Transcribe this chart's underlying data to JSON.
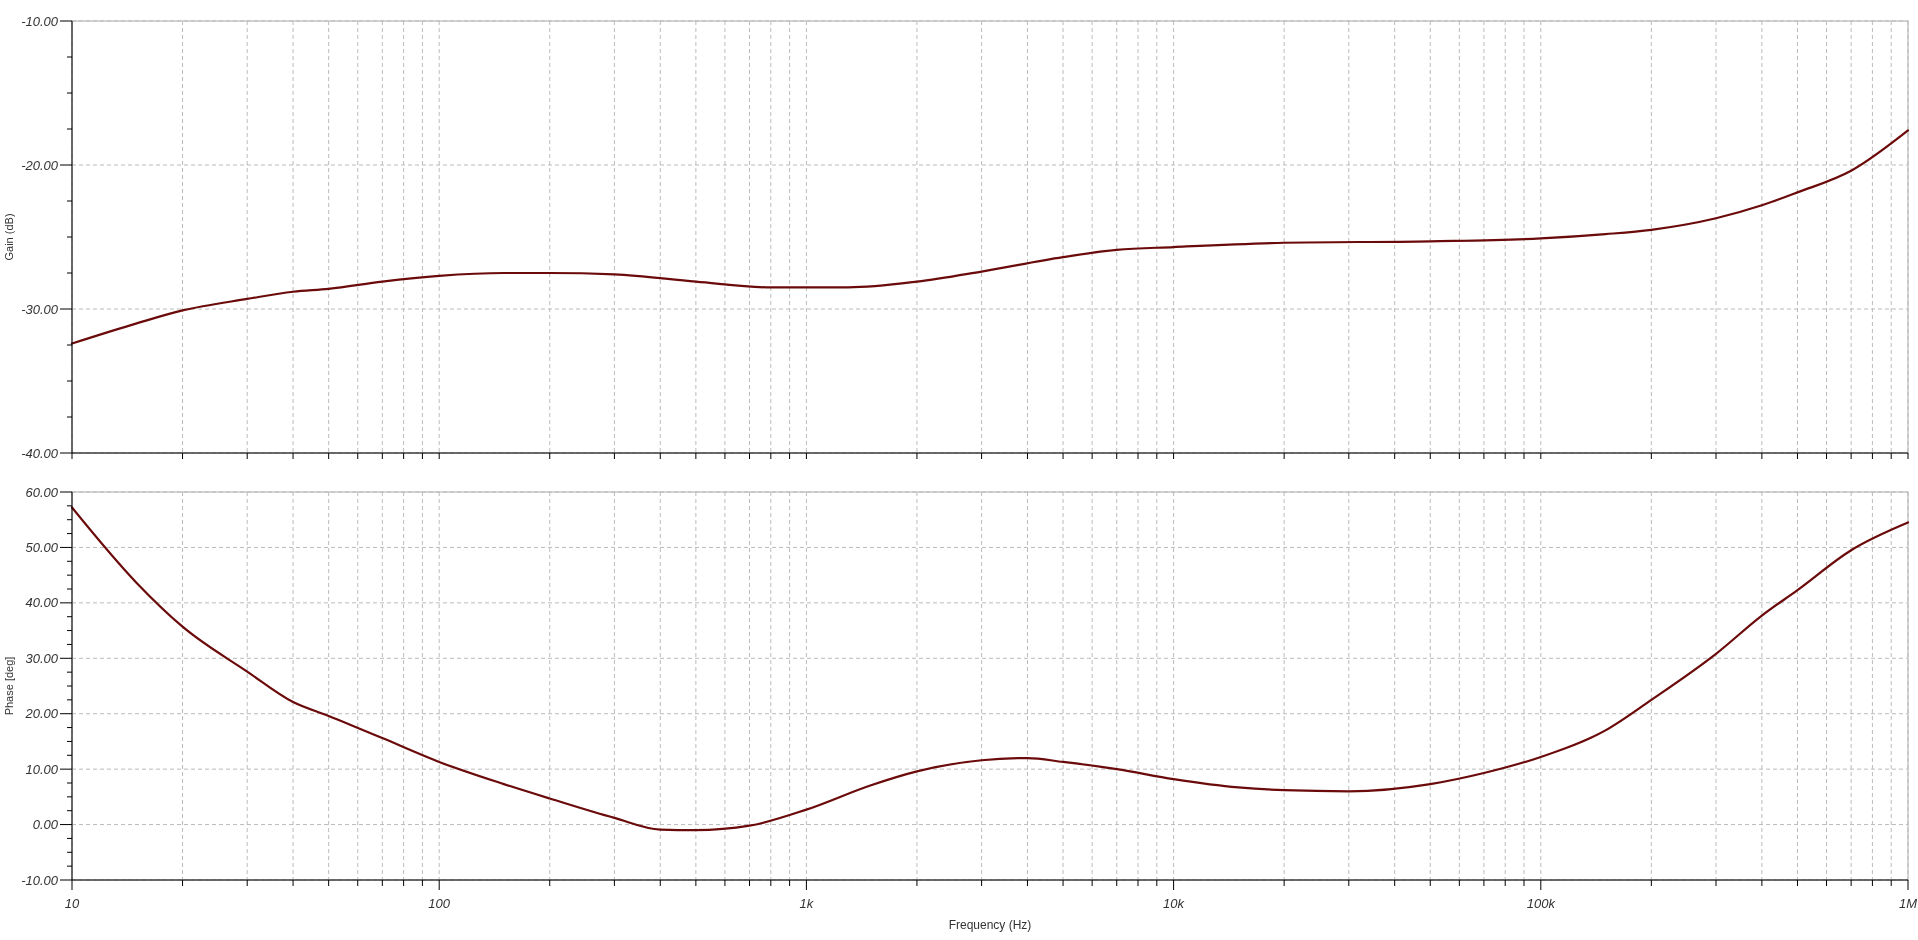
{
  "chart_data": [
    {
      "type": "line",
      "ylabel": "Gain (dB)",
      "log": "x",
      "grid": true,
      "tick_labels": "y",
      "xlim": [
        10,
        1000000
      ],
      "xticks": [
        {
          "value": 10,
          "label": null
        },
        {
          "value": 20,
          "label": null
        },
        {
          "value": 30,
          "label": null
        },
        {
          "value": 40,
          "label": null
        },
        {
          "value": 50,
          "label": null
        },
        {
          "value": 60,
          "label": null
        },
        {
          "value": 70,
          "label": null
        },
        {
          "value": 80,
          "label": null
        },
        {
          "value": 90,
          "label": null
        },
        {
          "value": 100,
          "label": null
        },
        {
          "value": 200,
          "label": null
        },
        {
          "value": 300,
          "label": null
        },
        {
          "value": 400,
          "label": null
        },
        {
          "value": 500,
          "label": null
        },
        {
          "value": 600,
          "label": null
        },
        {
          "value": 700,
          "label": null
        },
        {
          "value": 800,
          "label": null
        },
        {
          "value": 900,
          "label": null
        },
        {
          "value": 1000,
          "label": null
        },
        {
          "value": 2000,
          "label": null
        },
        {
          "value": 3000,
          "label": null
        },
        {
          "value": 4000,
          "label": null
        },
        {
          "value": 5000,
          "label": null
        },
        {
          "value": 6000,
          "label": null
        },
        {
          "value": 7000,
          "label": null
        },
        {
          "value": 8000,
          "label": null
        },
        {
          "value": 9000,
          "label": null
        },
        {
          "value": 10000,
          "label": null
        },
        {
          "value": 20000,
          "label": null
        },
        {
          "value": 30000,
          "label": null
        },
        {
          "value": 40000,
          "label": null
        },
        {
          "value": 50000,
          "label": null
        },
        {
          "value": 60000,
          "label": null
        },
        {
          "value": 70000,
          "label": null
        },
        {
          "value": 80000,
          "label": null
        },
        {
          "value": 90000,
          "label": null
        },
        {
          "value": 100000,
          "label": null
        },
        {
          "value": 200000,
          "label": null
        },
        {
          "value": 300000,
          "label": null
        },
        {
          "value": 400000,
          "label": null
        },
        {
          "value": 500000,
          "label": null
        },
        {
          "value": 600000,
          "label": null
        },
        {
          "value": 700000,
          "label": null
        },
        {
          "value": 800000,
          "label": null
        },
        {
          "value": 900000,
          "label": null
        },
        {
          "value": 1000000,
          "label": null
        }
      ],
      "ylim": [
        -40,
        -10
      ],
      "yticks": [
        {
          "value": -40,
          "label": "-40.00"
        },
        {
          "value": -30,
          "label": "-30.00"
        },
        {
          "value": -20,
          "label": "-20.00"
        },
        {
          "value": -10,
          "label": "-10.00"
        }
      ],
      "series": [
        {
          "color": "#6b0a0a",
          "x": [
            10,
            15,
            20,
            30,
            40,
            50,
            70,
            100,
            150,
            200,
            300,
            500,
            800,
            1300,
            2000,
            3000,
            5000,
            7000,
            10000,
            20000,
            50000,
            100000,
            150000,
            200000,
            300000,
            400000,
            500000,
            700000,
            1000000
          ],
          "values": [
            -32.4,
            -31.0,
            -30.1,
            -29.3,
            -28.8,
            -28.6,
            -28.1,
            -27.7,
            -27.5,
            -27.5,
            -27.6,
            -28.1,
            -28.5,
            -28.5,
            -28.1,
            -27.4,
            -26.4,
            -25.9,
            -25.7,
            -25.4,
            -25.3,
            -25.1,
            -24.8,
            -24.5,
            -23.7,
            -22.8,
            -21.9,
            -20.4,
            -17.6
          ]
        }
      ]
    },
    {
      "type": "line",
      "ylabel": "Phase [deg]",
      "xlabel": "Frequency (Hz)",
      "log": "x",
      "grid": true,
      "xlim": [
        10,
        1000000
      ],
      "xticks": [
        {
          "value": 10,
          "label": "10"
        },
        {
          "value": 20,
          "label": null
        },
        {
          "value": 30,
          "label": null
        },
        {
          "value": 40,
          "label": null
        },
        {
          "value": 50,
          "label": null
        },
        {
          "value": 60,
          "label": null
        },
        {
          "value": 70,
          "label": null
        },
        {
          "value": 80,
          "label": null
        },
        {
          "value": 90,
          "label": null
        },
        {
          "value": 100,
          "label": "100"
        },
        {
          "value": 200,
          "label": null
        },
        {
          "value": 300,
          "label": null
        },
        {
          "value": 400,
          "label": null
        },
        {
          "value": 500,
          "label": null
        },
        {
          "value": 600,
          "label": null
        },
        {
          "value": 700,
          "label": null
        },
        {
          "value": 800,
          "label": null
        },
        {
          "value": 900,
          "label": null
        },
        {
          "value": 1000,
          "label": "1k"
        },
        {
          "value": 2000,
          "label": null
        },
        {
          "value": 3000,
          "label": null
        },
        {
          "value": 4000,
          "label": null
        },
        {
          "value": 5000,
          "label": null
        },
        {
          "value": 6000,
          "label": null
        },
        {
          "value": 7000,
          "label": null
        },
        {
          "value": 8000,
          "label": null
        },
        {
          "value": 9000,
          "label": null
        },
        {
          "value": 10000,
          "label": "10k"
        },
        {
          "value": 20000,
          "label": null
        },
        {
          "value": 30000,
          "label": null
        },
        {
          "value": 40000,
          "label": null
        },
        {
          "value": 50000,
          "label": null
        },
        {
          "value": 60000,
          "label": null
        },
        {
          "value": 70000,
          "label": null
        },
        {
          "value": 80000,
          "label": null
        },
        {
          "value": 90000,
          "label": null
        },
        {
          "value": 100000,
          "label": "100k"
        },
        {
          "value": 200000,
          "label": null
        },
        {
          "value": 300000,
          "label": null
        },
        {
          "value": 400000,
          "label": null
        },
        {
          "value": 500000,
          "label": null
        },
        {
          "value": 600000,
          "label": null
        },
        {
          "value": 700000,
          "label": null
        },
        {
          "value": 800000,
          "label": null
        },
        {
          "value": 900000,
          "label": null
        },
        {
          "value": 1000000,
          "label": "1M"
        }
      ],
      "ylim": [
        -10,
        60
      ],
      "yticks": [
        {
          "value": -10,
          "label": "-10.00"
        },
        {
          "value": 0,
          "label": "0.00"
        },
        {
          "value": 10,
          "label": "10.00"
        },
        {
          "value": 20,
          "label": "20.00"
        },
        {
          "value": 30,
          "label": "30.00"
        },
        {
          "value": 40,
          "label": "40.00"
        },
        {
          "value": 50,
          "label": "50.00"
        },
        {
          "value": 60,
          "label": "60.00"
        }
      ],
      "series": [
        {
          "color": "#6b0a0a",
          "x": [
            10,
            15,
            20,
            30,
            40,
            50,
            70,
            100,
            150,
            200,
            300,
            400,
            500,
            700,
            1000,
            1500,
            2000,
            3000,
            4000,
            5000,
            7000,
            10000,
            15000,
            20000,
            30000,
            50000,
            70000,
            100000,
            150000,
            200000,
            300000,
            400000,
            500000,
            700000,
            1000000
          ],
          "values": [
            57.2,
            43.6,
            35.7,
            27.6,
            22.1,
            19.6,
            15.6,
            11.3,
            7.3,
            4.7,
            1.2,
            -0.9,
            -1.0,
            -0.2,
            2.7,
            7.1,
            9.6,
            11.6,
            12.0,
            11.3,
            10.0,
            8.2,
            6.7,
            6.2,
            6.0,
            7.3,
            9.3,
            12.2,
            17.0,
            22.5,
            30.8,
            37.7,
            42.3,
            49.5,
            54.5
          ]
        }
      ]
    }
  ]
}
